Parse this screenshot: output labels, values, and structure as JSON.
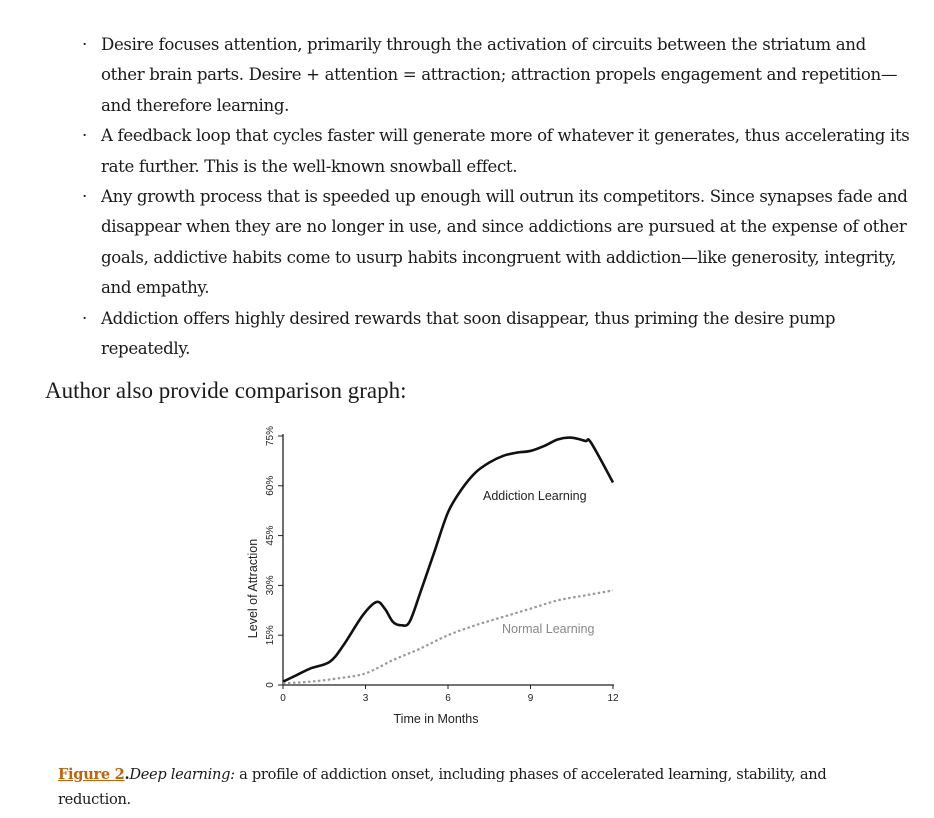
{
  "bullets": [
    "Desire focuses attention, primarily through the activation of circuits between the striatum and other brain parts. Desire + attention = attraction; attraction propels engagement and repetition—and therefore learning.",
    "A feedback loop that cycles faster will generate more of whatever it generates, thus acceler­ating its rate further. This is the well-known snowball effect.",
    "Any growth process that is speeded up enough will outrun its competitors. Since synapses fade and disappear when they are no longer in use, and since addictions are pursued at the expense of other goals, addictive habits come to usurp habits incongruent with addiction—like generosity, integrity, and empathy.",
    "Addiction offers highly desired rewards that soon disappear, thus priming the desire pump repeatedly."
  ],
  "bullet_symbol": "·",
  "intro": "Author also provide comparison graph:",
  "chart_data": {
    "type": "line",
    "xlabel": "Time in Months",
    "ylabel": "Level of Attraction",
    "xlim": [
      0,
      12
    ],
    "ylim": [
      0,
      75
    ],
    "xticks": [
      "0",
      "3",
      "6",
      "9",
      "12"
    ],
    "yticks": [
      "0",
      "15%",
      "30%",
      "45%",
      "60%",
      "75%"
    ],
    "grid": false,
    "series": [
      {
        "name": "Addiction Learning",
        "style": "solid",
        "color": "#111111",
        "x": [
          0,
          0.5,
          1,
          1.7,
          2.2,
          2.9,
          3.4,
          3.7,
          4,
          4.3,
          4.6,
          5,
          5.5,
          6,
          6.5,
          7,
          7.5,
          8,
          8.5,
          9,
          9.5,
          10,
          10.5,
          11,
          11.2,
          12
        ],
        "y": [
          1,
          3,
          5,
          7,
          12,
          21,
          25,
          23,
          19,
          18,
          19,
          28,
          40,
          52,
          59,
          64,
          67,
          69,
          70,
          70.5,
          72,
          74,
          74.5,
          73.5,
          73,
          61
        ]
      },
      {
        "name": "Normal Learning",
        "style": "dotted",
        "color": "#999999",
        "x": [
          0,
          1,
          2,
          3,
          4,
          5,
          6,
          7,
          8,
          9,
          10,
          11,
          12
        ],
        "y": [
          0.5,
          1,
          2,
          3.5,
          7.5,
          11,
          15,
          18,
          20.5,
          23,
          25.5,
          27,
          28.5
        ]
      }
    ]
  },
  "caption": {
    "link": "Figure 2",
    "sep": ".",
    "italic": "Deep learning:",
    "text": " a profile of addiction onset, including phases of accelerated learning, stability, and reduction."
  }
}
